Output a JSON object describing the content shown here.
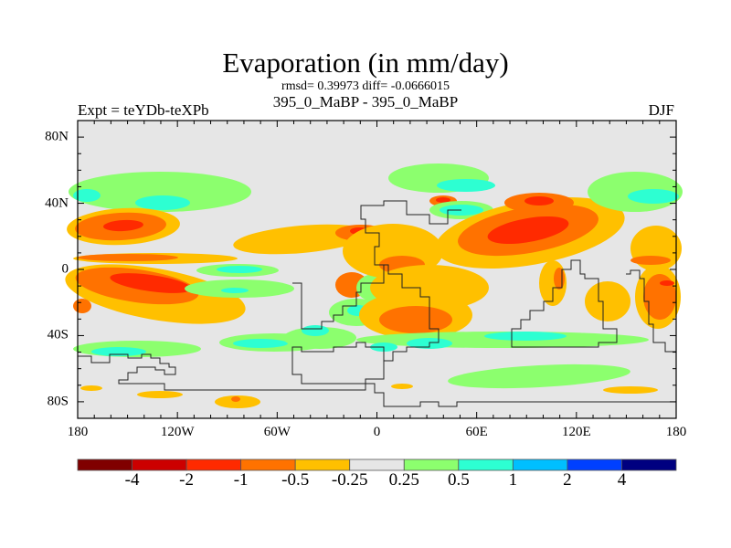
{
  "title": "Evaporation (in mm/day)",
  "stats": "rmsd= 0.39973 diff= -0.0666015",
  "models": "395_0_MaBP - 395_0_MaBP",
  "left_string": "Expt = teYDb-teXPb",
  "right_string": "DJF",
  "map": {
    "lat_labels": [
      "80N",
      "40N",
      "0",
      "40S",
      "80S"
    ],
    "lat_values": [
      80,
      40,
      0,
      -40,
      -80
    ],
    "lon_labels": [
      "180",
      "120W",
      "60W",
      "0",
      "60E",
      "120E",
      "180"
    ],
    "lon_values": [
      -180,
      -120,
      -60,
      0,
      60,
      120,
      180
    ],
    "background_color": "#e6e6e6"
  },
  "colorbar": {
    "labels": [
      "-4",
      "-2",
      "-1",
      "-0.5",
      "-0.25",
      "0.25",
      "0.5",
      "1",
      "2",
      "4"
    ],
    "colors": [
      "#800000",
      "#cc0000",
      "#ff2a00",
      "#ff7200",
      "#ffc000",
      "#e6e6e6",
      "#8cff6e",
      "#2dffd2",
      "#00bfff",
      "#0040ff",
      "#000080"
    ]
  }
}
